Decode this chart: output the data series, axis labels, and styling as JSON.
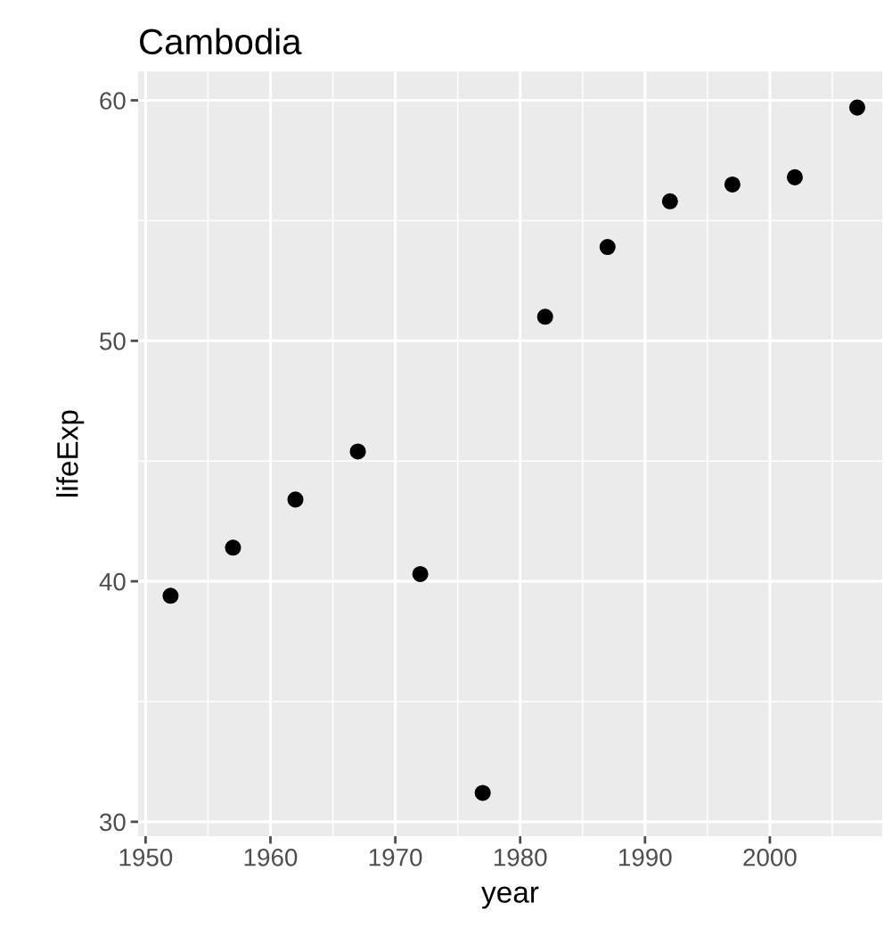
{
  "chart_data": {
    "type": "scatter",
    "title": "Cambodia",
    "xlabel": "year",
    "ylabel": "lifeExp",
    "x": [
      1952,
      1957,
      1962,
      1967,
      1972,
      1977,
      1982,
      1987,
      1992,
      1997,
      2002,
      2007
    ],
    "series": [
      {
        "color": "#000000",
        "values": [
          39.4,
          41.4,
          43.4,
          45.4,
          40.3,
          31.2,
          51.0,
          53.9,
          55.8,
          56.5,
          56.8,
          59.7
        ]
      }
    ],
    "xlim": [
      1949.4,
      2009.0
    ],
    "ylim": [
      29.4,
      61.2
    ],
    "xticks": [
      1950,
      1960,
      1970,
      1980,
      1990,
      2000
    ],
    "yticks": [
      30,
      40,
      50,
      60
    ],
    "grid": true,
    "marker": "circle",
    "legend": false
  }
}
